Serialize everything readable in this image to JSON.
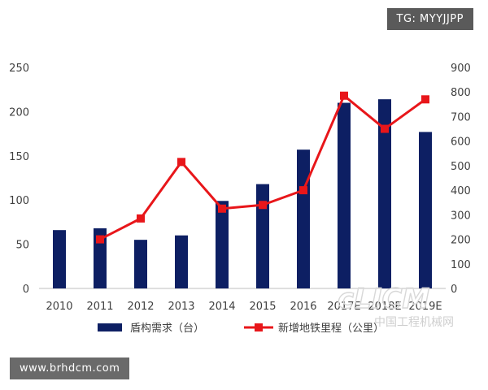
{
  "overlays": {
    "tg_tag": "TG: MYYJJPP",
    "site_tag": "www.brhdcm.com",
    "watermark_logo": "cLICM",
    "watermark_text": "中国工程机械网"
  },
  "chart_data": {
    "type": "bar+line",
    "categories": [
      "2010",
      "2011",
      "2012",
      "2013",
      "2014",
      "2015",
      "2016",
      "2017E",
      "2018E",
      "2019E"
    ],
    "series": [
      {
        "name": "盾构需求（台）",
        "type": "bar",
        "axis": "left",
        "color": "#0d1f63",
        "values": [
          66,
          68,
          55,
          60,
          99,
          118,
          157,
          210,
          214,
          177
        ]
      },
      {
        "name": "新增地铁里程（公里）",
        "type": "line",
        "axis": "right",
        "color": "#e8161a",
        "values": [
          null,
          200,
          285,
          515,
          325,
          340,
          400,
          785,
          650,
          770
        ]
      }
    ],
    "left_axis": {
      "ylim": [
        0,
        250
      ],
      "ticks": [
        0,
        50,
        100,
        150,
        200,
        250
      ]
    },
    "right_axis": {
      "ylim": [
        0,
        900
      ],
      "ticks": [
        0,
        100,
        200,
        300,
        400,
        500,
        600,
        700,
        800,
        900
      ]
    },
    "grid": false,
    "legend": "bottom"
  }
}
